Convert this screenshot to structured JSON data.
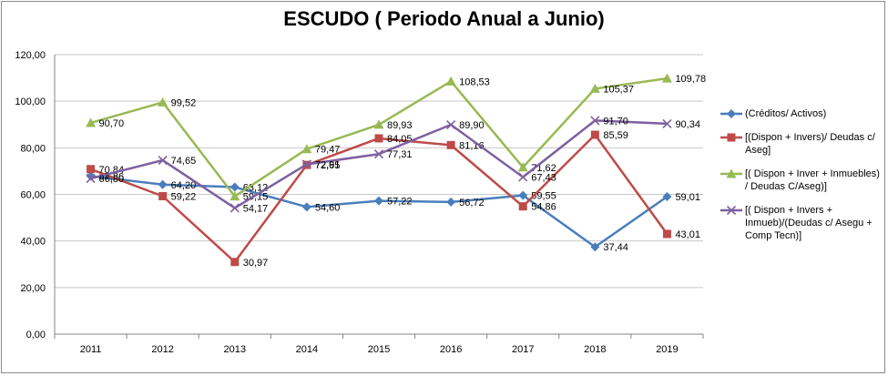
{
  "chart_data": {
    "type": "line",
    "title": "ESCUDO ( Periodo Anual a Junio)",
    "categories": [
      "2011",
      "2012",
      "2013",
      "2014",
      "2015",
      "2016",
      "2017",
      "2018",
      "2019"
    ],
    "ylim": [
      0,
      120
    ],
    "yticks": [
      "0,00",
      "20,00",
      "40,00",
      "60,00",
      "80,00",
      "100,00",
      "120,00"
    ],
    "grid": true,
    "legend_position": "right",
    "series": [
      {
        "name": "(Créditos/ Activos)",
        "color": "#4a7ebb",
        "marker": "diamond",
        "values": [
          67.86,
          64.2,
          63.12,
          54.6,
          57.22,
          56.72,
          59.55,
          37.44,
          59.01
        ],
        "labels": [
          "67,86",
          "64,20",
          "63,12",
          "54,60",
          "57,22",
          "56,72",
          "59,55",
          "37,44",
          "59,01"
        ]
      },
      {
        "name": "[(Dispon + Invers)/ Deudas c/ Aseg]",
        "color": "#be4b48",
        "marker": "square",
        "values": [
          70.84,
          59.22,
          30.97,
          72.65,
          84.05,
          81.16,
          54.86,
          85.59,
          43.01
        ],
        "labels": [
          "70,84",
          "59,22",
          "30,97",
          "72,65",
          "84,05",
          "81,16",
          "54,86",
          "85,59",
          "43,01"
        ]
      },
      {
        "name": "[( Dispon + Inver + Inmuebles) / Deudas C/Aseg)]",
        "color": "#98b954",
        "marker": "triangle",
        "values": [
          90.7,
          99.52,
          59.15,
          79.47,
          89.93,
          108.53,
          71.62,
          105.37,
          109.78
        ],
        "labels": [
          "90,70",
          "99,52",
          "59,15",
          "79,47",
          "89,93",
          "108,53",
          "71,62",
          "105,37",
          "109,78"
        ]
      },
      {
        "name": "[( Dispon + Invers + Inmueb)/(Deudas c/ Asegu + Comp Tecn)]",
        "color": "#7d60a0",
        "marker": "x",
        "values": [
          66.8,
          74.65,
          54.17,
          72.91,
          77.31,
          89.9,
          67.43,
          91.7,
          90.34
        ],
        "labels": [
          "66,80",
          "74,65",
          "54,17",
          "72,91",
          "77,31",
          "89,90",
          "67,43",
          "91,70",
          "90,34"
        ]
      }
    ]
  }
}
